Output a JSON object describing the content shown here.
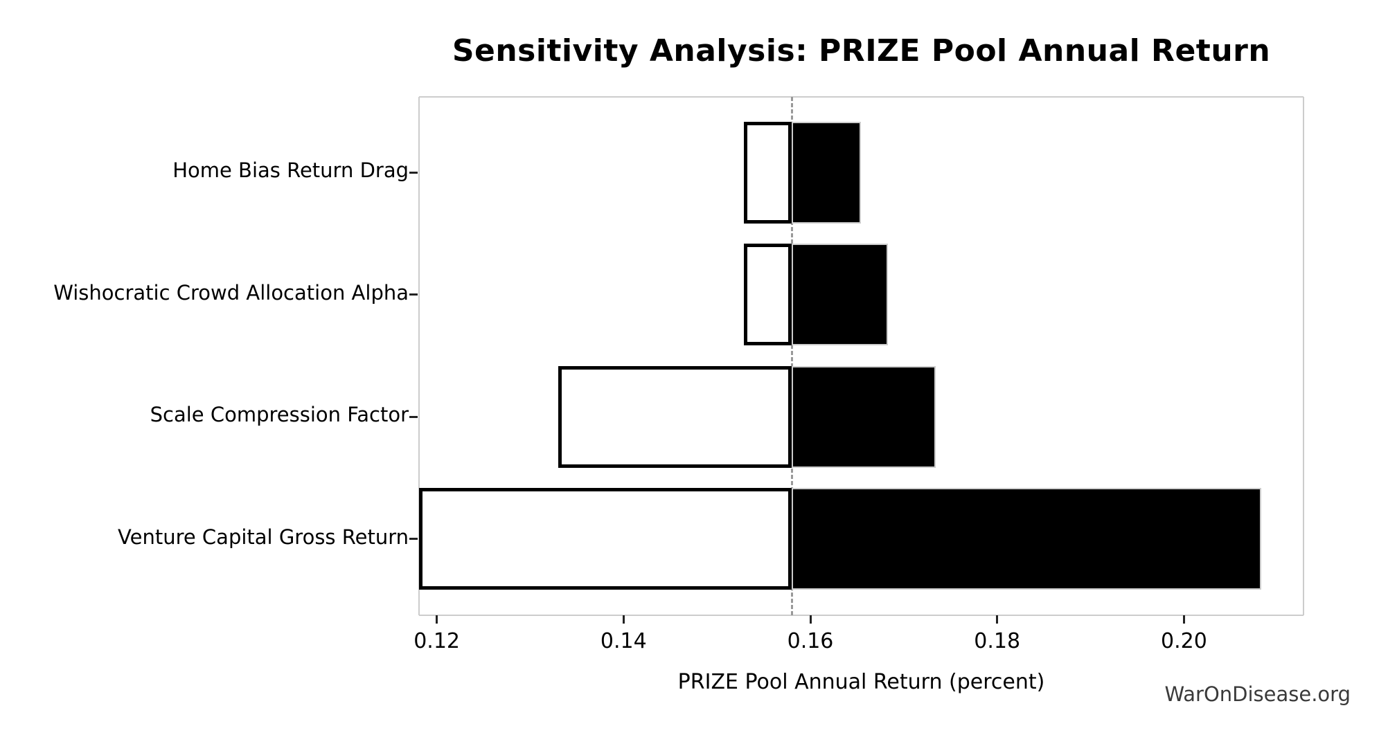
{
  "watermark": "WarOnDisease.org",
  "chart_data": {
    "type": "bar",
    "subtype": "tornado-sensitivity",
    "title": "Sensitivity Analysis: PRIZE Pool Annual Return",
    "xlabel": "PRIZE Pool Annual Return (percent)",
    "ylabel": "",
    "categories": [
      "Home Bias Return Drag",
      "Wishocratic Crowd Allocation Alpha",
      "Scale Compression Factor",
      "Venture Capital Gross Return"
    ],
    "baseline": 0.158,
    "series": [
      {
        "name": "low",
        "values": [
          0.1529,
          0.1529,
          0.133,
          0.1181
        ]
      },
      {
        "name": "high",
        "values": [
          0.1654,
          0.1683,
          0.1734,
          0.2083
        ]
      }
    ],
    "xlim": [
      0.1181,
      0.2128
    ],
    "xticks": [
      0.12,
      0.14,
      0.16,
      0.18,
      0.2
    ],
    "xtick_labels": [
      "0.12",
      "0.14",
      "0.16",
      "0.18",
      "0.20"
    ],
    "grid": false,
    "legend": "none",
    "colors": {
      "low_fill": "#ffffff",
      "low_edge": "#000000",
      "high_fill": "#000000",
      "high_edge": "#cccccc",
      "baseline_line": "#999999",
      "spine": "#cccccc",
      "text": "#000000",
      "watermark": "#3a3a3a"
    }
  }
}
